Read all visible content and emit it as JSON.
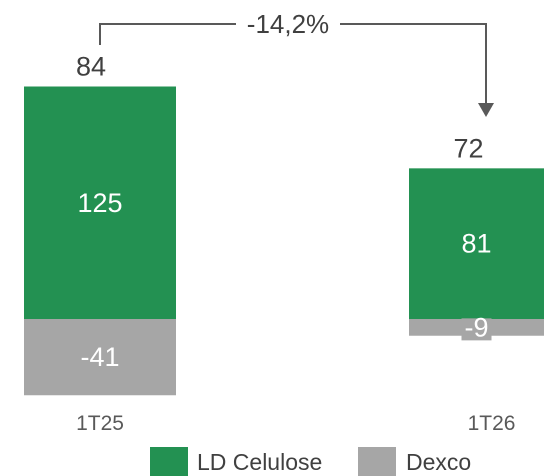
{
  "chart_data": {
    "type": "bar",
    "stacked": true,
    "categories": [
      "1T25",
      "1T26"
    ],
    "series": [
      {
        "name": "LD Celulose",
        "color": "#239152",
        "values": [
          125,
          81
        ]
      },
      {
        "name": "Dexco",
        "color": "#a6a6a6",
        "values": [
          -41,
          -9
        ]
      }
    ],
    "value_labels": [
      [
        "125",
        "-41"
      ],
      [
        "81",
        "-9"
      ]
    ],
    "totals": [
      84,
      72
    ],
    "total_labels": [
      "84",
      "72"
    ],
    "change_annotation": "-14,2%",
    "legend_position": "bottom",
    "grid": false,
    "ylim": [
      -50,
      130
    ],
    "title": "",
    "xlabel": "",
    "ylabel": ""
  }
}
